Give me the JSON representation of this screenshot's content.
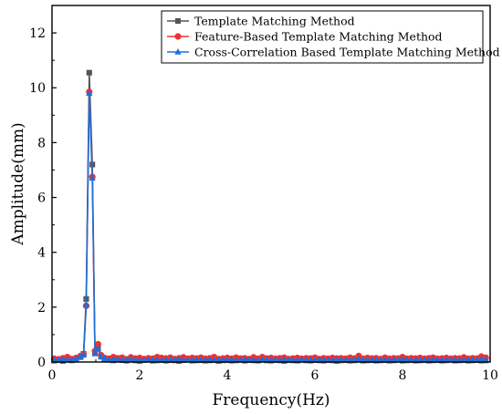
{
  "chart_data": {
    "type": "line",
    "title": "",
    "xlabel": "Frequency(Hz)",
    "ylabel": "Amplitude(mm)",
    "xlim": [
      0,
      10
    ],
    "ylim": [
      0,
      13
    ],
    "xticks": [
      0,
      2,
      4,
      6,
      8,
      10
    ],
    "yticks": [
      0,
      2,
      4,
      6,
      8,
      10,
      12
    ],
    "x_tick_labels": [
      "0",
      "2",
      "4",
      "6",
      "8",
      "10"
    ],
    "y_tick_labels": [
      "0",
      "2",
      "4",
      "6",
      "8",
      "10",
      "12"
    ],
    "grid": false,
    "legend_position": "top-right",
    "x": [
      0.05,
      0.15,
      0.25,
      0.35,
      0.45,
      0.55,
      0.65,
      0.72,
      0.78,
      0.85,
      0.92,
      0.98,
      1.05,
      1.12,
      1.2,
      1.3,
      1.4,
      1.5,
      1.6,
      1.7,
      1.8,
      1.9,
      2.0,
      2.1,
      2.2,
      2.3,
      2.4,
      2.5,
      2.6,
      2.7,
      2.8,
      2.9,
      3.0,
      3.1,
      3.2,
      3.3,
      3.4,
      3.5,
      3.6,
      3.7,
      3.8,
      3.9,
      4.0,
      4.1,
      4.2,
      4.3,
      4.4,
      4.5,
      4.6,
      4.7,
      4.8,
      4.9,
      5.0,
      5.1,
      5.2,
      5.3,
      5.4,
      5.5,
      5.6,
      5.7,
      5.8,
      5.9,
      6.0,
      6.1,
      6.2,
      6.3,
      6.4,
      6.5,
      6.6,
      6.7,
      6.8,
      6.9,
      7.0,
      7.1,
      7.2,
      7.3,
      7.4,
      7.5,
      7.6,
      7.7,
      7.8,
      7.9,
      8.0,
      8.1,
      8.2,
      8.3,
      8.4,
      8.5,
      8.6,
      8.7,
      8.8,
      8.9,
      9.0,
      9.1,
      9.2,
      9.3,
      9.4,
      9.5,
      9.6,
      9.7,
      9.8,
      9.9
    ],
    "series": [
      {
        "name": "Template Matching Method",
        "color": "#555555",
        "marker": "square",
        "values": [
          0.05,
          0.07,
          0.04,
          0.08,
          0.06,
          0.1,
          0.18,
          0.3,
          2.3,
          10.55,
          7.2,
          0.35,
          0.55,
          0.2,
          0.1,
          0.08,
          0.06,
          0.09,
          0.07,
          0.05,
          0.08,
          0.06,
          0.04,
          0.07,
          0.09,
          0.05,
          0.06,
          0.08,
          0.05,
          0.07,
          0.06,
          0.04,
          0.07,
          0.08,
          0.05,
          0.06,
          0.07,
          0.05,
          0.06,
          0.08,
          0.04,
          0.06,
          0.07,
          0.05,
          0.06,
          0.08,
          0.05,
          0.07,
          0.06,
          0.05,
          0.08,
          0.06,
          0.05,
          0.07,
          0.06,
          0.04,
          0.07,
          0.06,
          0.05,
          0.08,
          0.06,
          0.05,
          0.07,
          0.06,
          0.05,
          0.07,
          0.06,
          0.04,
          0.06,
          0.07,
          0.05,
          0.06,
          0.08,
          0.05,
          0.06,
          0.07,
          0.05,
          0.06,
          0.07,
          0.05,
          0.06,
          0.08,
          0.05,
          0.06,
          0.07,
          0.05,
          0.06,
          0.07,
          0.05,
          0.06,
          0.07,
          0.05,
          0.06,
          0.08,
          0.05,
          0.06,
          0.07,
          0.05,
          0.06,
          0.07,
          0.05,
          0.06
        ]
      },
      {
        "name": "Feature-Based Template Matching Method",
        "color": "#ee3333",
        "marker": "circle",
        "values": [
          0.12,
          0.1,
          0.14,
          0.18,
          0.11,
          0.15,
          0.22,
          0.28,
          2.05,
          9.85,
          6.75,
          0.4,
          0.65,
          0.25,
          0.15,
          0.12,
          0.18,
          0.14,
          0.16,
          0.1,
          0.17,
          0.13,
          0.15,
          0.11,
          0.14,
          0.12,
          0.18,
          0.15,
          0.13,
          0.16,
          0.11,
          0.14,
          0.17,
          0.12,
          0.15,
          0.13,
          0.16,
          0.12,
          0.14,
          0.18,
          0.11,
          0.13,
          0.15,
          0.12,
          0.16,
          0.13,
          0.14,
          0.11,
          0.17,
          0.12,
          0.18,
          0.13,
          0.15,
          0.12,
          0.14,
          0.16,
          0.11,
          0.13,
          0.15,
          0.12,
          0.14,
          0.13,
          0.16,
          0.11,
          0.14,
          0.12,
          0.15,
          0.13,
          0.14,
          0.12,
          0.16,
          0.13,
          0.22,
          0.12,
          0.15,
          0.13,
          0.14,
          0.11,
          0.16,
          0.12,
          0.14,
          0.13,
          0.18,
          0.12,
          0.14,
          0.13,
          0.15,
          0.12,
          0.14,
          0.16,
          0.12,
          0.13,
          0.15,
          0.12,
          0.14,
          0.13,
          0.17,
          0.12,
          0.14,
          0.13,
          0.2,
          0.16
        ]
      },
      {
        "name": "Cross-Correlation Based Template Matching Method",
        "color": "#1f6fd8",
        "marker": "triangle",
        "values": [
          0.08,
          0.06,
          0.1,
          0.09,
          0.07,
          0.12,
          0.2,
          0.25,
          2.1,
          9.8,
          6.7,
          0.3,
          0.5,
          0.18,
          0.12,
          0.08,
          0.1,
          0.09,
          0.07,
          0.08,
          0.1,
          0.09,
          0.06,
          0.08,
          0.07,
          0.09,
          0.08,
          0.06,
          0.09,
          0.07,
          0.08,
          0.1,
          0.07,
          0.08,
          0.06,
          0.09,
          0.08,
          0.07,
          0.09,
          0.06,
          0.08,
          0.07,
          0.09,
          0.08,
          0.06,
          0.07,
          0.09,
          0.08,
          0.07,
          0.06,
          0.09,
          0.08,
          0.07,
          0.08,
          0.06,
          0.09,
          0.07,
          0.08,
          0.06,
          0.09,
          0.07,
          0.08,
          0.06,
          0.09,
          0.07,
          0.08,
          0.06,
          0.09,
          0.07,
          0.08,
          0.06,
          0.09,
          0.1,
          0.07,
          0.08,
          0.06,
          0.09,
          0.07,
          0.08,
          0.06,
          0.09,
          0.07,
          0.1,
          0.08,
          0.06,
          0.09,
          0.07,
          0.08,
          0.06,
          0.09,
          0.07,
          0.08,
          0.06,
          0.09,
          0.07,
          0.08,
          0.06,
          0.09,
          0.07,
          0.08,
          0.1,
          0.09
        ]
      }
    ]
  }
}
